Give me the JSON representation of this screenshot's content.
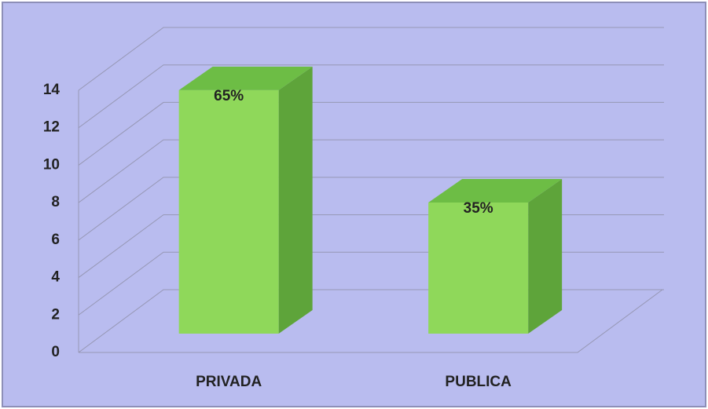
{
  "chart_data": {
    "type": "bar3d",
    "categories": [
      "PRIVADA",
      "PUBLICA"
    ],
    "values": [
      13,
      7
    ],
    "annotations": [
      "65%",
      "35%"
    ],
    "color": "#8fd85a",
    "ylim": [
      0,
      14
    ],
    "yticks": [
      0,
      2,
      4,
      6,
      8,
      10,
      12,
      14
    ],
    "grid": true
  }
}
